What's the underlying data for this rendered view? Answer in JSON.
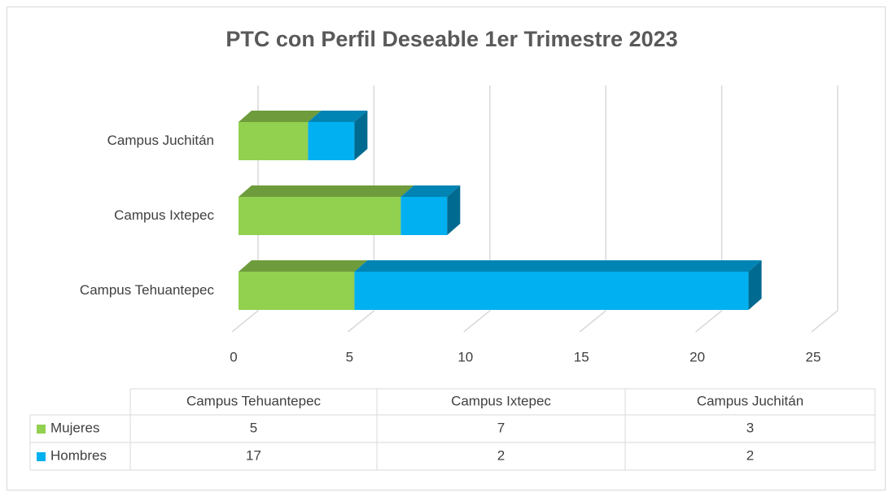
{
  "chart_data": {
    "type": "bar",
    "orientation": "horizontal",
    "stacked": true,
    "3d": true,
    "title": "PTC con Perfil Deseable  1er Trimestre 2023",
    "categories": [
      "Campus Tehuantepec",
      "Campus Ixtepec",
      "Campus Juchitán"
    ],
    "series": [
      {
        "name": "Mujeres",
        "color": "#92d050",
        "values": [
          5,
          7,
          3
        ]
      },
      {
        "name": "Hombres",
        "color": "#00b0f0",
        "values": [
          17,
          2,
          2
        ]
      }
    ],
    "xlim": [
      0,
      25
    ],
    "xticks": [
      0,
      5,
      10,
      15,
      20,
      25
    ],
    "grid": true,
    "data_table": true
  }
}
